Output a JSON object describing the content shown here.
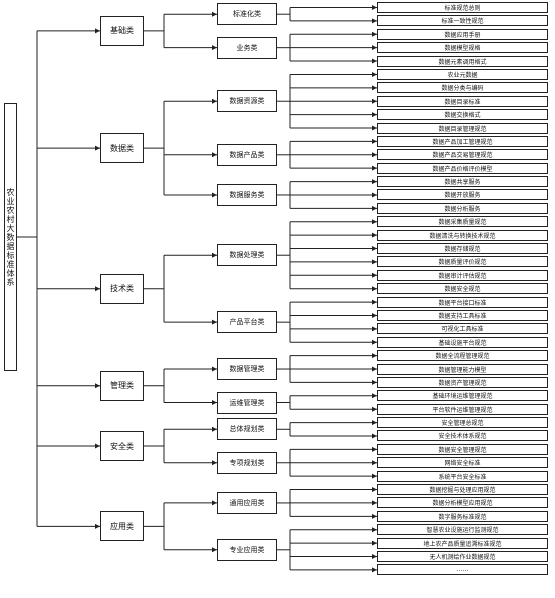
{
  "root": {
    "label": "农业农村大数据标准体系"
  },
  "categories": [
    {
      "label": "基础类",
      "groups": [
        {
          "label": "标准化类",
          "items": [
            "标准规范总则",
            "标准一致性规范"
          ]
        },
        {
          "label": "业务类",
          "items": [
            "数据应用手册",
            "数据模型规格",
            "数据元素调用格式"
          ]
        }
      ]
    },
    {
      "label": "数据类",
      "groups": [
        {
          "label": "数据资源类",
          "items": [
            "农业元数据",
            "数据分类与编码",
            "数据目录标准",
            "数据交换格式",
            "数据目录管理规范"
          ]
        },
        {
          "label": "数据产品类",
          "items": [
            "数据产品加工管理规范",
            "数据产品交易管理规范",
            "数据产品价格评价模型"
          ]
        },
        {
          "label": "数据服务类",
          "items": [
            "数据共享服务",
            "数据开放服务",
            "数据分析服务"
          ]
        }
      ]
    },
    {
      "label": "技术类",
      "groups": [
        {
          "label": "数据处理类",
          "items": [
            "数据采集质量规范",
            "数据清洗与转换技术规范",
            "数据存储规范",
            "数据质量评价规范",
            "数据审计评估规范",
            "数据安全规范"
          ]
        },
        {
          "label": "产品平台类",
          "items": [
            "数据平台接口标准",
            "数据支持工具标准",
            "可视化工具标准",
            "基础设施平台规范"
          ]
        }
      ]
    },
    {
      "label": "管理类",
      "groups": [
        {
          "label": "数据管理类",
          "items": [
            "数据全流程管理规范",
            "数据管理能力模型",
            "数据资产管理规范"
          ]
        },
        {
          "label": "运维管理类",
          "items": [
            "基础环境运维管理规范",
            "平台软件运维管理规范"
          ]
        }
      ]
    },
    {
      "label": "安全类",
      "groups": [
        {
          "label": "总体规划类",
          "items": [
            "安全管理总规范",
            "安全技术体系规范"
          ]
        },
        {
          "label": "专项规划类",
          "items": [
            "数据安全管理规范",
            "网络安全标准",
            "系统平台安全标准"
          ]
        }
      ]
    },
    {
      "label": "应用类",
      "groups": [
        {
          "label": "通用应用类",
          "items": [
            "数据挖掘与处理应用规范",
            "数据分析模型应用规范",
            "数字服务标准规范"
          ]
        },
        {
          "label": "专业应用类",
          "items": [
            "智慧农业设施运行监测规范",
            "地上农产品质量追溯标准规范",
            "无人机测绘作业数据规范",
            "……"
          ]
        }
      ]
    }
  ]
}
